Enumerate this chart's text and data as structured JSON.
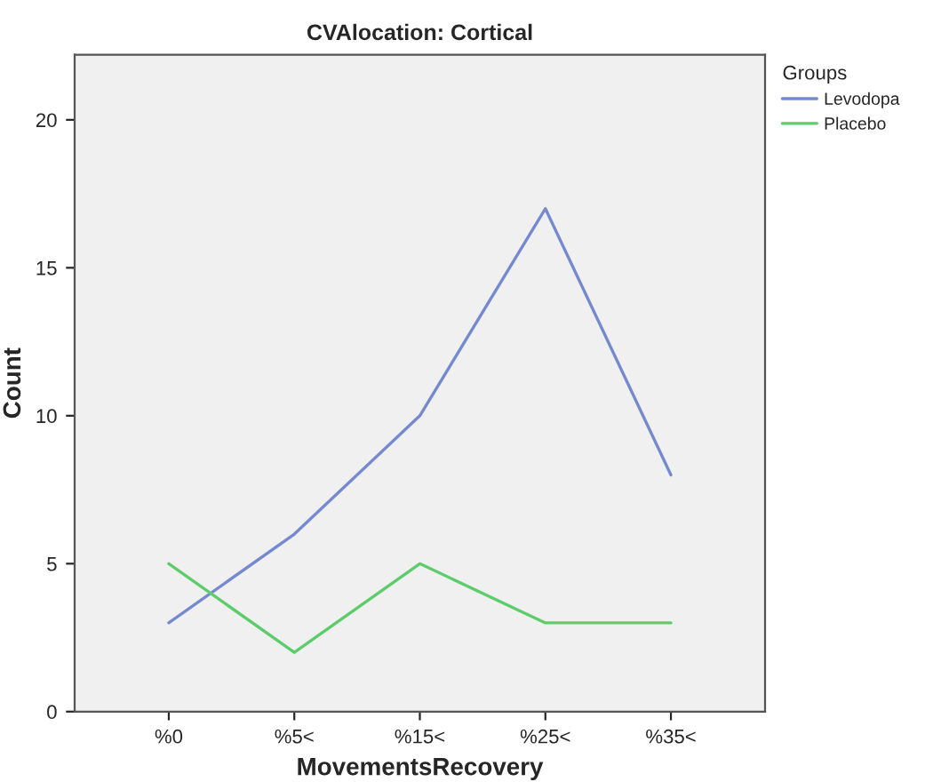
{
  "chart_data": {
    "type": "line",
    "title": "CVAlocation: Cortical",
    "xlabel": "MovementsRecovery",
    "ylabel": "Count",
    "legend_title": "Groups",
    "categories": [
      "%0",
      "%5<",
      "%15<",
      "%25<",
      "%35<"
    ],
    "series": [
      {
        "name": "Levodopa",
        "color": "#7589d0",
        "values": [
          3,
          6,
          10,
          17,
          8
        ]
      },
      {
        "name": "Placebo",
        "color": "#5dcc6b",
        "values": [
          5,
          2,
          5,
          3,
          3
        ]
      }
    ],
    "ylim": [
      0,
      22.2
    ],
    "yticks": [
      0,
      5,
      10,
      15,
      20
    ],
    "grid": false,
    "legend": "top right",
    "marker": "none",
    "line_style": "solid"
  }
}
